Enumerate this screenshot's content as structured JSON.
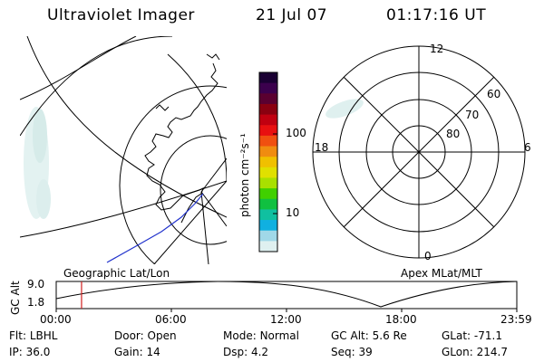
{
  "header": {
    "instrument": "Ultraviolet Imager",
    "date": "21 Jul 07",
    "time": "01:17:16 UT"
  },
  "colorbar": {
    "unit_label": "photon cm⁻²s⁻¹",
    "ticks": [
      "100",
      "10"
    ],
    "colors": [
      "#1a0033",
      "#3b004d",
      "#5a0030",
      "#8a0010",
      "#c00010",
      "#e81010",
      "#f05010",
      "#f08c10",
      "#f0c000",
      "#e0e000",
      "#a8e000",
      "#40d000",
      "#10c040",
      "#10c0a0",
      "#10b0e0",
      "#a0d8e8",
      "#dff0f0"
    ]
  },
  "left_map": {
    "label": "Geographic Lat/Lon"
  },
  "right_map": {
    "label": "Apex MLat/MLT",
    "mlt_labels": {
      "top": "12",
      "left": "18",
      "right": "6",
      "bottom": "0"
    },
    "lat_labels": [
      "60",
      "70",
      "80"
    ]
  },
  "altitude_plot": {
    "ylabel": "GC Alt",
    "yticks": [
      "9.0",
      "1.8"
    ],
    "xticks": [
      "00:00",
      "06:00",
      "12:00",
      "18:00",
      "23:59"
    ],
    "current_time_fraction": 0.055
  },
  "status": {
    "row1": [
      {
        "key": "Flt:",
        "value": "LBHL"
      },
      {
        "key": "Door:",
        "value": "Open"
      },
      {
        "key": "Mode:",
        "value": "Normal"
      },
      {
        "key": "GC Alt:",
        "value": "5.6 Re"
      },
      {
        "key": "GLat:",
        "value": "-71.1"
      }
    ],
    "row2": [
      {
        "key": "IP:",
        "value": "36.0"
      },
      {
        "key": "Gain:",
        "value": "14"
      },
      {
        "key": "Dsp:",
        "value": "4.2"
      },
      {
        "key": "Seq:",
        "value": "39"
      },
      {
        "key": "GLon:",
        "value": "214.7"
      }
    ]
  }
}
